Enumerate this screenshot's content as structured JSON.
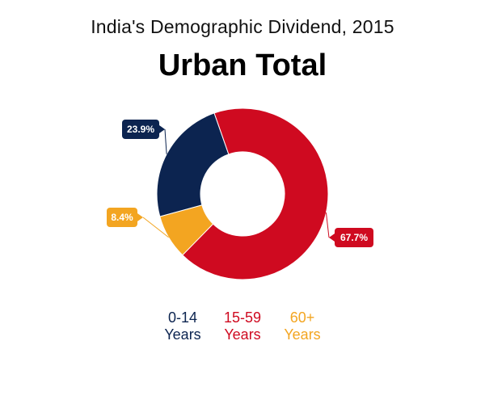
{
  "header": {
    "subtitle": "India's Demographic Dividend, 2015",
    "title": "Urban Total"
  },
  "colors": {
    "0-14": "#0c2450",
    "15-59": "#cf0a20",
    "60+": "#f3a521"
  },
  "chart_data": {
    "type": "pie",
    "donut": true,
    "title": "Urban Total",
    "subtitle": "India's Demographic Dividend, 2015",
    "start_angle_deg": -19.3,
    "slices": [
      {
        "key": "0-14",
        "line1": "0-14",
        "line2": "Years",
        "value": 23.9,
        "label": "23.9%",
        "color": "#0c2450"
      },
      {
        "key": "15-59",
        "line1": "15-59",
        "line2": "Years",
        "value": 67.7,
        "label": "67.7%",
        "color": "#cf0a20"
      },
      {
        "key": "60+",
        "line1": "60+",
        "line2": "Years",
        "value": 8.4,
        "label": "8.4%",
        "color": "#f3a521"
      }
    ],
    "order_clockwise": [
      "15-59",
      "60+",
      "0-14"
    ],
    "legend_placement": "bottom"
  }
}
